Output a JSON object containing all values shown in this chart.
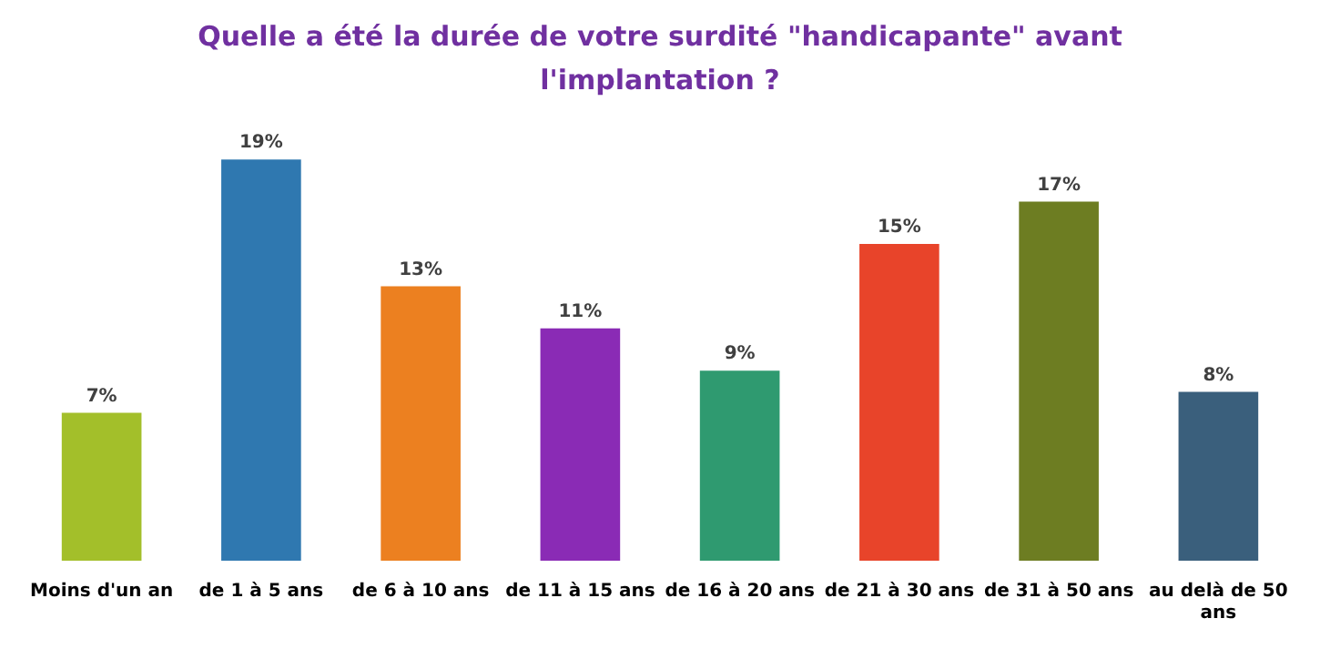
{
  "chart_data": {
    "type": "bar",
    "title": "Quelle a été la durée de votre surdité \"handicapante\" avant l'implantation ?",
    "categories": [
      "Moins d'un an",
      "de 1 à 5 ans",
      "de 6 à 10 ans",
      "de 11 à 15 ans",
      "de 16 à 20 ans",
      "de 21 à 30 ans",
      "de 31 à 50 ans",
      "au delà de 50 ans"
    ],
    "values": [
      7,
      19,
      13,
      11,
      9,
      15,
      17,
      8
    ],
    "value_labels": [
      "7%",
      "19%",
      "13%",
      "11%",
      "9%",
      "15%",
      "17%",
      "8%"
    ],
    "colors": [
      "#a3bf2a",
      "#2f78b0",
      "#ec8020",
      "#8a2bb5",
      "#2f9a70",
      "#e8442a",
      "#6d7d22",
      "#3a5f7c"
    ],
    "grid": false,
    "legend": false
  }
}
